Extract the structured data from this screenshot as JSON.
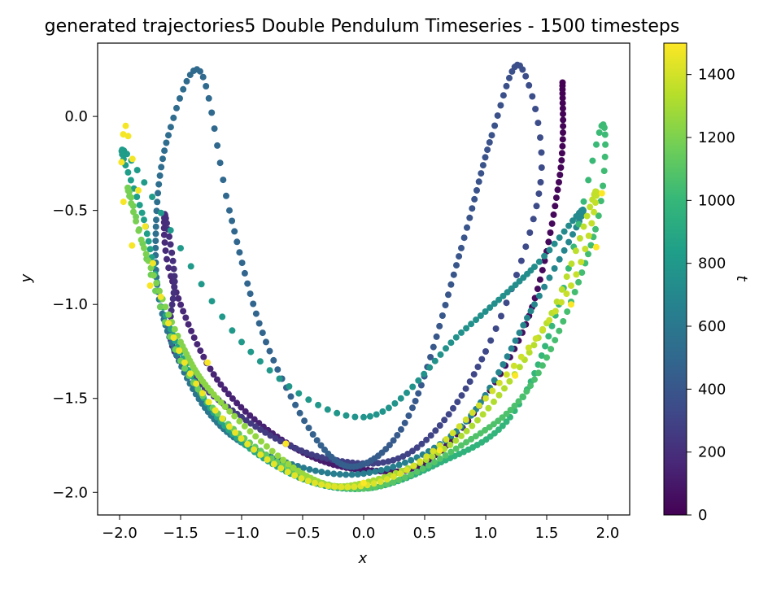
{
  "chart_data": {
    "type": "scatter",
    "title": "generated trajectories5 Double Pendulum Timeseries - 1500 timesteps",
    "xlabel": "x",
    "ylabel": "y",
    "xlim": [
      -2.18,
      2.18
    ],
    "ylim": [
      -2.12,
      0.39
    ],
    "xticks": [
      -2.0,
      -1.5,
      -1.0,
      -0.5,
      0.0,
      0.5,
      1.0,
      1.5,
      2.0
    ],
    "xtick_labels": [
      "−2.0",
      "−1.5",
      "−1.0",
      "−0.5",
      "0.0",
      "0.5",
      "1.0",
      "1.5",
      "2.0"
    ],
    "yticks": [
      0.0,
      -0.5,
      -1.0,
      -1.5,
      -2.0
    ],
    "ytick_labels": [
      "0.0",
      "−0.5",
      "−1.0",
      "−1.5",
      "−2.0"
    ],
    "grid": false,
    "colormap": "viridis",
    "colorbar": {
      "label": "t",
      "range": [
        0,
        1500
      ],
      "ticks": [
        0,
        200,
        400,
        600,
        800,
        1000,
        1200,
        1400
      ],
      "tick_labels": [
        "0",
        "200",
        "400",
        "600",
        "800",
        "1000",
        "1200",
        "1400"
      ]
    },
    "trajectory_waypoints": [
      {
        "t": 0,
        "x": 1.63,
        "y": 0.18
      },
      {
        "t": 25,
        "x": 1.6,
        "y": -0.35
      },
      {
        "t": 50,
        "x": 1.3,
        "y": -1.15
      },
      {
        "t": 75,
        "x": 0.6,
        "y": -1.8
      },
      {
        "t": 100,
        "x": 0.0,
        "y": -1.88
      },
      {
        "t": 125,
        "x": -0.6,
        "y": -1.75
      },
      {
        "t": 150,
        "x": -1.2,
        "y": -1.4
      },
      {
        "t": 175,
        "x": -1.58,
        "y": -0.85
      },
      {
        "t": 190,
        "x": -1.63,
        "y": -0.52
      },
      {
        "t": 205,
        "x": -1.55,
        "y": -0.85
      },
      {
        "t": 225,
        "x": -1.55,
        "y": -1.25
      },
      {
        "t": 250,
        "x": -1.0,
        "y": -1.6
      },
      {
        "t": 275,
        "x": -0.3,
        "y": -1.82
      },
      {
        "t": 300,
        "x": 0.4,
        "y": -1.78
      },
      {
        "t": 325,
        "x": 1.0,
        "y": -1.25
      },
      {
        "t": 345,
        "x": 1.45,
        "y": -0.35
      },
      {
        "t": 360,
        "x": 1.28,
        "y": 0.27
      },
      {
        "t": 375,
        "x": 1.05,
        "y": -0.1
      },
      {
        "t": 395,
        "x": 0.8,
        "y": -0.7
      },
      {
        "t": 420,
        "x": 0.4,
        "y": -1.55
      },
      {
        "t": 440,
        "x": 0.0,
        "y": -1.85
      },
      {
        "t": 460,
        "x": -0.35,
        "y": -1.75
      },
      {
        "t": 480,
        "x": -0.8,
        "y": -1.2
      },
      {
        "t": 500,
        "x": -1.1,
        "y": -0.5
      },
      {
        "t": 515,
        "x": -1.34,
        "y": 0.24
      },
      {
        "t": 530,
        "x": -1.6,
        "y": -0.1
      },
      {
        "t": 545,
        "x": -1.7,
        "y": -0.55
      },
      {
        "t": 565,
        "x": -1.65,
        "y": -1.05
      },
      {
        "t": 590,
        "x": -1.3,
        "y": -1.55
      },
      {
        "t": 615,
        "x": -0.8,
        "y": -1.8
      },
      {
        "t": 640,
        "x": 0.0,
        "y": -1.9
      },
      {
        "t": 665,
        "x": 0.8,
        "y": -1.65
      },
      {
        "t": 690,
        "x": 1.4,
        "y": -1.0
      },
      {
        "t": 710,
        "x": 1.8,
        "y": -0.5
      },
      {
        "t": 730,
        "x": 1.4,
        "y": -0.8
      },
      {
        "t": 755,
        "x": 0.8,
        "y": -1.15
      },
      {
        "t": 780,
        "x": 0.0,
        "y": -1.6
      },
      {
        "t": 800,
        "x": -1.0,
        "y": -1.2
      },
      {
        "t": 820,
        "x": -1.94,
        "y": -0.2
      },
      {
        "t": 840,
        "x": -1.8,
        "y": -0.55
      },
      {
        "t": 860,
        "x": -1.6,
        "y": -1.1
      },
      {
        "t": 885,
        "x": -1.2,
        "y": -1.6
      },
      {
        "t": 910,
        "x": -0.6,
        "y": -1.9
      },
      {
        "t": 935,
        "x": 0.0,
        "y": -1.98
      },
      {
        "t": 960,
        "x": 0.6,
        "y": -1.85
      },
      {
        "t": 985,
        "x": 1.2,
        "y": -1.6
      },
      {
        "t": 1005,
        "x": 1.6,
        "y": -1.0
      },
      {
        "t": 1020,
        "x": 1.95,
        "y": -0.05
      },
      {
        "t": 1035,
        "x": 1.9,
        "y": -0.6
      },
      {
        "t": 1060,
        "x": 1.4,
        "y": -1.4
      },
      {
        "t": 1085,
        "x": 0.8,
        "y": -1.75
      },
      {
        "t": 1110,
        "x": 0.0,
        "y": -1.98
      },
      {
        "t": 1135,
        "x": -0.8,
        "y": -1.8
      },
      {
        "t": 1160,
        "x": -1.5,
        "y": -1.3
      },
      {
        "t": 1180,
        "x": -1.92,
        "y": -0.4
      },
      {
        "t": 1195,
        "x": -1.8,
        "y": -0.7
      },
      {
        "t": 1215,
        "x": -1.5,
        "y": -1.2
      },
      {
        "t": 1240,
        "x": -1.2,
        "y": -1.5
      },
      {
        "t": 1265,
        "x": -0.5,
        "y": -1.9
      },
      {
        "t": 1290,
        "x": 0.0,
        "y": -1.95
      },
      {
        "t": 1315,
        "x": 0.8,
        "y": -1.7
      },
      {
        "t": 1340,
        "x": 1.5,
        "y": -1.1
      },
      {
        "t": 1360,
        "x": 1.9,
        "y": -0.4
      },
      {
        "t": 1375,
        "x": 1.7,
        "y": -0.9
      },
      {
        "t": 1395,
        "x": 1.0,
        "y": -1.5
      },
      {
        "t": 1415,
        "x": 0.3,
        "y": -1.9
      },
      {
        "t": 1435,
        "x": -0.4,
        "y": -1.95
      },
      {
        "t": 1455,
        "x": -1.1,
        "y": -1.65
      },
      {
        "t": 1470,
        "x": -1.6,
        "y": -1.1
      },
      {
        "t": 1480,
        "x": -1.95,
        "y": -0.05
      },
      {
        "t": 1488,
        "x": -1.75,
        "y": -0.9
      },
      {
        "t": 1492,
        "x": 0.0,
        "y": -1.95
      },
      {
        "t": 1496,
        "x": 1.7,
        "y": -1.0
      },
      {
        "t": 1500,
        "x": 1.97,
        "y": -0.21
      }
    ]
  }
}
